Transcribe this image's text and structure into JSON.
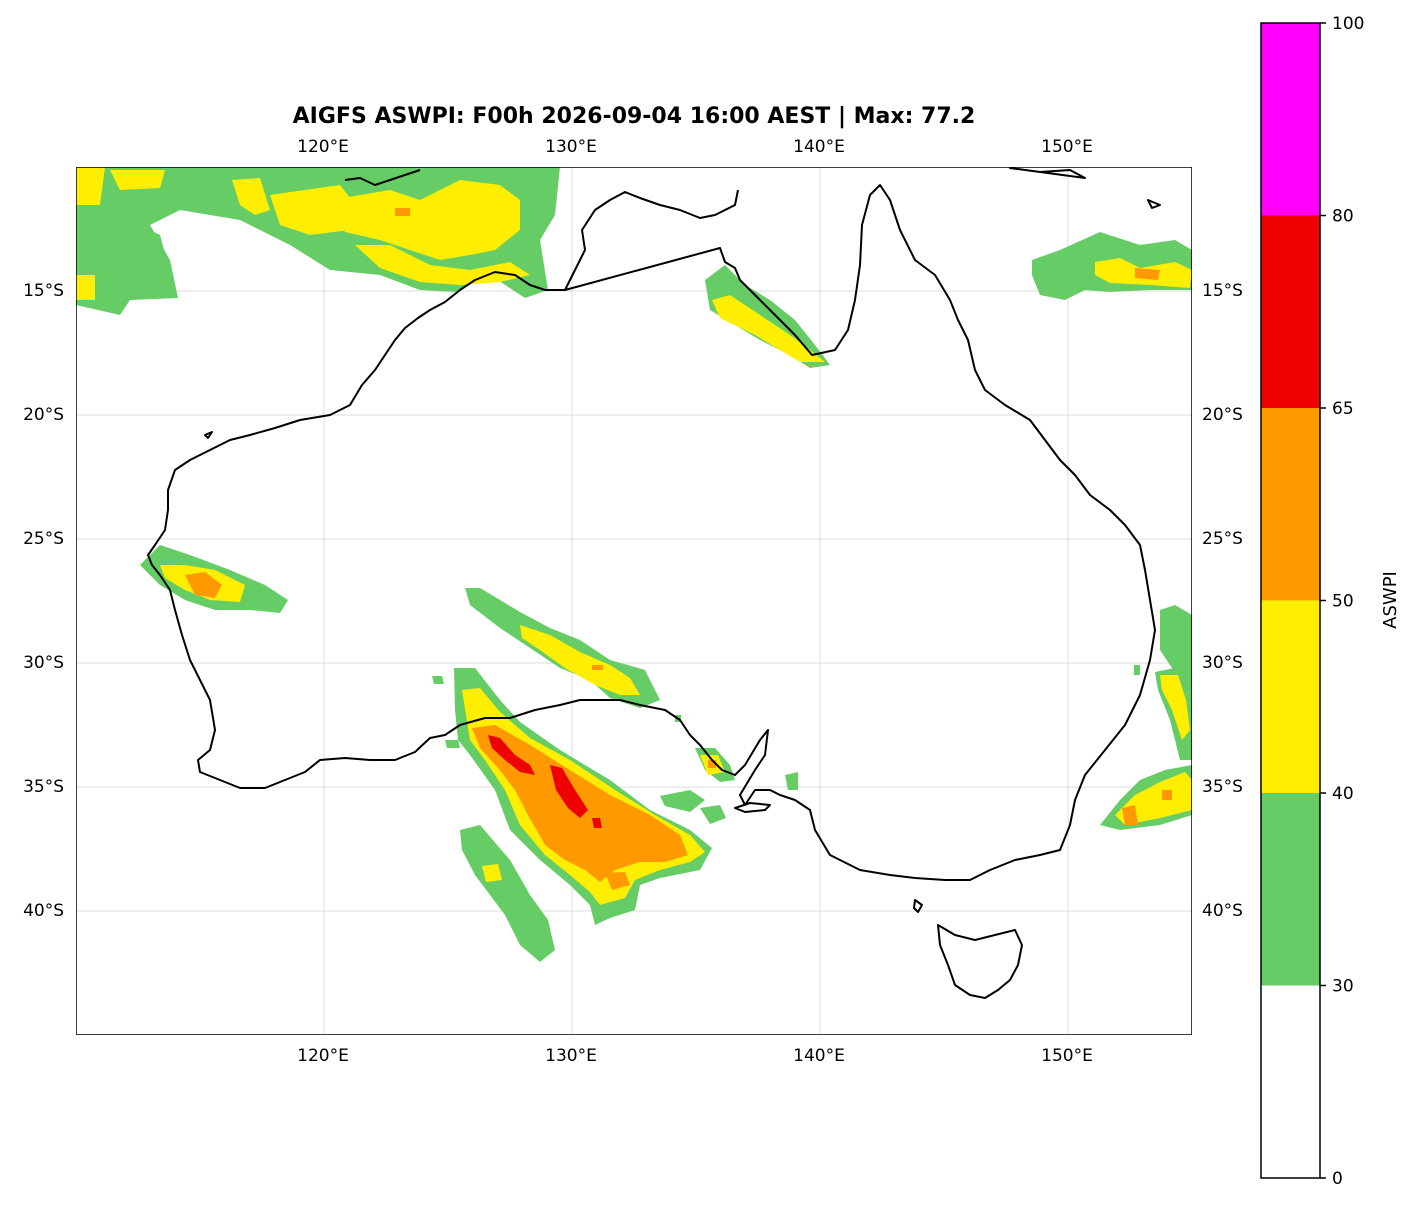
{
  "title": "AIGFS ASWPI: F00h 2026-09-04 16:00 AEST | Max: 77.2",
  "map": {
    "lon_labels_top": [
      "120°E",
      "130°E",
      "140°E",
      "150°E"
    ],
    "lon_labels_bottom": [
      "120°E",
      "130°E",
      "140°E",
      "150°E"
    ],
    "lat_labels_left": [
      "15°S",
      "20°S",
      "25°S",
      "30°S",
      "35°S",
      "40°S"
    ],
    "lat_labels_right": [
      "15°S",
      "20°S",
      "25°S",
      "30°S",
      "35°S",
      "40°S"
    ],
    "gridlines": true,
    "extent": {
      "lon": [
        110,
        155
      ],
      "lat": [
        -45,
        -10
      ]
    }
  },
  "colorbar": {
    "label": "ASWPI",
    "ticks": [
      "0",
      "30",
      "40",
      "50",
      "65",
      "80",
      "100"
    ],
    "levels": [
      {
        "from": 0,
        "to": 30,
        "color": "#ffffff"
      },
      {
        "from": 30,
        "to": 40,
        "color": "#66cc66"
      },
      {
        "from": 40,
        "to": 50,
        "color": "#ffee00"
      },
      {
        "from": 50,
        "to": 65,
        "color": "#ff9900"
      },
      {
        "from": 65,
        "to": 80,
        "color": "#ee0000"
      },
      {
        "from": 80,
        "to": 100,
        "color": "#ff00ff"
      }
    ]
  },
  "colors": {
    "green": "#66cc66",
    "yellow": "#ffee00",
    "orange": "#ff9900",
    "red": "#ee0000",
    "magenta": "#ff00ff",
    "coast": "#000000",
    "grid": "#dddddd"
  }
}
